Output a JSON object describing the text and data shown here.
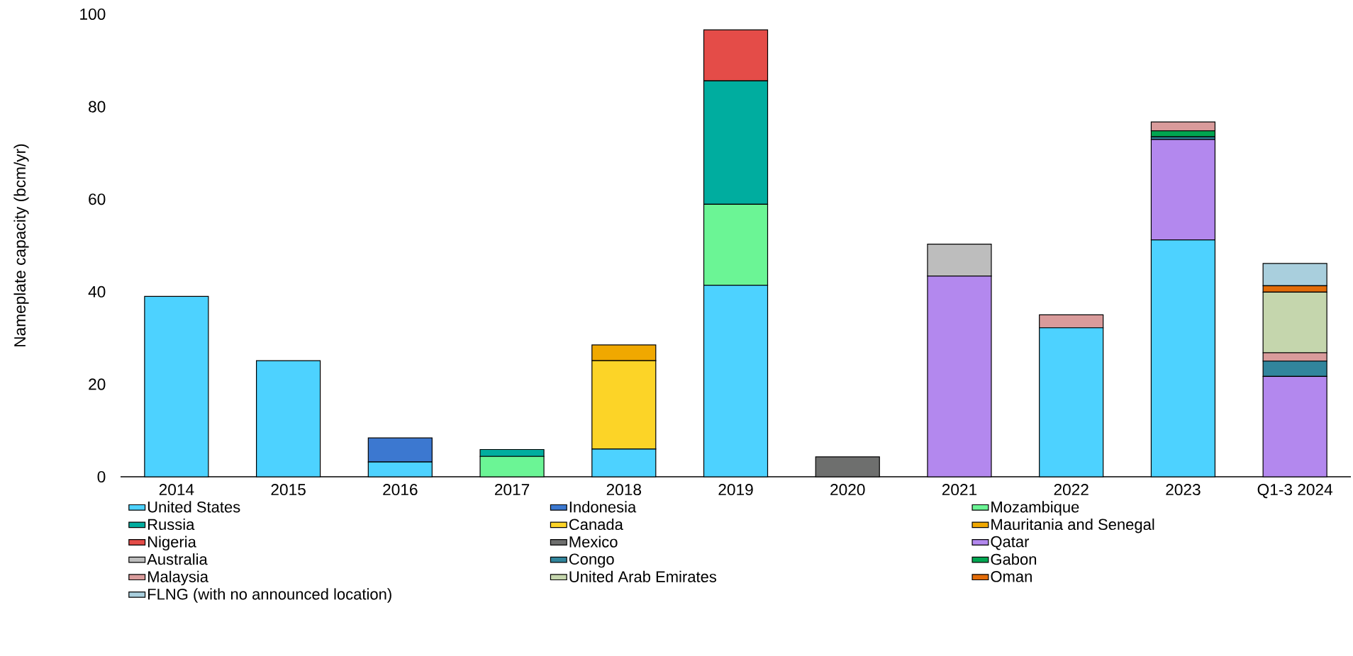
{
  "chart_data": {
    "type": "bar",
    "stacked": true,
    "ylabel": "Nameplate capacity (bcm/yr)",
    "categories": [
      "2014",
      "2015",
      "2016",
      "2017",
      "2018",
      "2019",
      "2020",
      "2021",
      "2022",
      "2023",
      "Q1-3 2024"
    ],
    "ylim": [
      0,
      100
    ],
    "yticks": [
      0,
      20,
      40,
      60,
      80,
      100
    ],
    "grid": false,
    "legend": "bottom",
    "series": [
      {
        "name": "United States",
        "color": "#4dd2ff",
        "values": [
          39.0,
          25.1,
          3.2,
          null,
          6.0,
          41.4,
          null,
          null,
          32.2,
          51.2,
          null
        ]
      },
      {
        "name": "Indonesia",
        "color": "#3c78d0",
        "values": [
          null,
          null,
          5.2,
          null,
          null,
          null,
          null,
          null,
          null,
          null,
          null
        ]
      },
      {
        "name": "Mozambique",
        "color": "#6bf595",
        "values": [
          null,
          null,
          null,
          4.4,
          null,
          17.5,
          null,
          null,
          null,
          null,
          null
        ]
      },
      {
        "name": "Russia",
        "color": "#00ad9f",
        "values": [
          null,
          null,
          null,
          1.5,
          null,
          26.7,
          null,
          null,
          null,
          null,
          null
        ]
      },
      {
        "name": "Canada",
        "color": "#fcd427",
        "values": [
          null,
          null,
          null,
          null,
          19.1,
          null,
          null,
          null,
          null,
          null,
          null
        ]
      },
      {
        "name": "Mauritania and Senegal",
        "color": "#f0a800",
        "values": [
          null,
          null,
          null,
          null,
          3.4,
          null,
          null,
          null,
          null,
          null,
          null
        ]
      },
      {
        "name": "Nigeria",
        "color": "#e44c48",
        "values": [
          null,
          null,
          null,
          null,
          null,
          11.0,
          null,
          null,
          null,
          null,
          null
        ]
      },
      {
        "name": "Mexico",
        "color": "#6e6f6e",
        "values": [
          null,
          null,
          null,
          null,
          null,
          null,
          4.3,
          null,
          null,
          null,
          null
        ]
      },
      {
        "name": "Qatar",
        "color": "#b388ee",
        "values": [
          null,
          null,
          null,
          null,
          null,
          null,
          null,
          43.4,
          null,
          21.7,
          21.7
        ]
      },
      {
        "name": "Australia",
        "color": "#bdbdbd",
        "values": [
          null,
          null,
          null,
          null,
          null,
          null,
          null,
          6.9,
          null,
          null,
          null
        ]
      },
      {
        "name": "Congo",
        "color": "#31859c",
        "values": [
          null,
          null,
          null,
          null,
          null,
          null,
          null,
          null,
          null,
          0.6,
          3.3
        ]
      },
      {
        "name": "Gabon",
        "color": "#00a651",
        "values": [
          null,
          null,
          null,
          null,
          null,
          null,
          null,
          null,
          null,
          1.3,
          null
        ]
      },
      {
        "name": "Malaysia",
        "color": "#d99b9b",
        "values": [
          null,
          null,
          null,
          null,
          null,
          null,
          null,
          null,
          2.8,
          1.9,
          1.8
        ]
      },
      {
        "name": "United Arab Emirates",
        "color": "#c5d6ad",
        "values": [
          null,
          null,
          null,
          null,
          null,
          null,
          null,
          null,
          null,
          null,
          13.1
        ]
      },
      {
        "name": "Oman",
        "color": "#e36c09",
        "values": [
          null,
          null,
          null,
          null,
          null,
          null,
          null,
          null,
          null,
          null,
          1.4
        ]
      },
      {
        "name": "FLNG (with no announced location)",
        "color": "#a9cfdd",
        "values": [
          null,
          null,
          null,
          null,
          null,
          null,
          null,
          null,
          null,
          null,
          4.8
        ]
      }
    ]
  }
}
